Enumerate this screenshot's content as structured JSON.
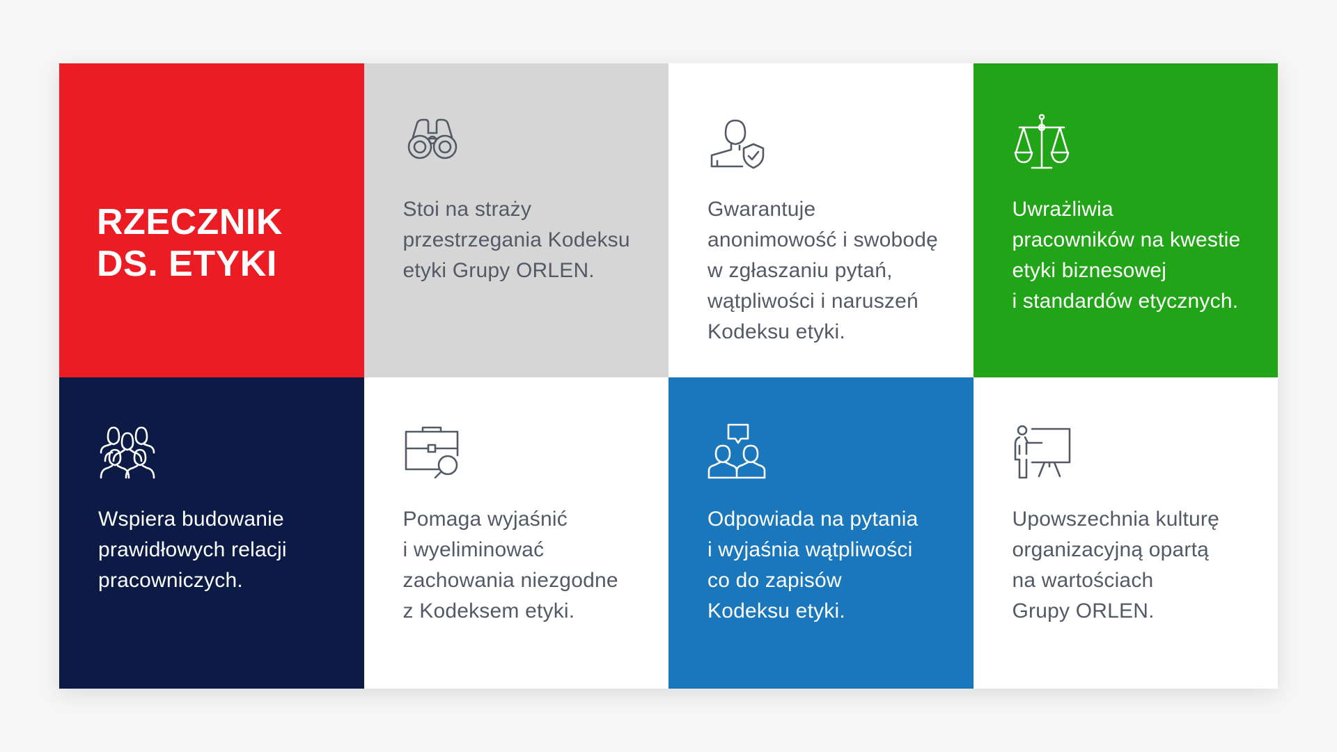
{
  "colors": {
    "red": "#ec1c24",
    "gray": "#d6d6d6",
    "white": "#ffffff",
    "green": "#22a418",
    "navy": "#0b1b45",
    "blue": "#1b77bc",
    "icon_dark": "#535a66",
    "icon_light": "#ffffff"
  },
  "title": "RZECZNIK\nDS. ETYKI",
  "tiles": [
    {
      "icon": "binoculars-icon",
      "text": "Stoi na straży\nprzestrzegania Kodeksu\netyki Grupy ORLEN."
    },
    {
      "icon": "person-shield-icon",
      "text": "Gwarantuje\nanonimowość i swobodę\nw zgłaszaniu pytań,\nwątpliwości i naruszeń\nKodeksu etyki."
    },
    {
      "icon": "scales-icon",
      "text": "Uwrażliwia\npracowników na kwestie\netyki biznesowej\ni standardów etycznych."
    },
    {
      "icon": "group-people-icon",
      "text": "Wspiera budowanie\nprawidłowych relacji\npracowniczych."
    },
    {
      "icon": "briefcase-magnifier-icon",
      "text": "Pomaga wyjaśnić\ni wyeliminować\nzachowania niezgodne\nz Kodeksem etyki."
    },
    {
      "icon": "people-speech-bubble-icon",
      "text": "Odpowiada na pytania\ni wyjaśnia wątpliwości\nco do zapisów\nKodeksu etyki."
    },
    {
      "icon": "presenter-board-icon",
      "text": "Upowszechnia kulturę\norganizacyjną opartą\nna wartościach\nGrupy ORLEN."
    }
  ]
}
